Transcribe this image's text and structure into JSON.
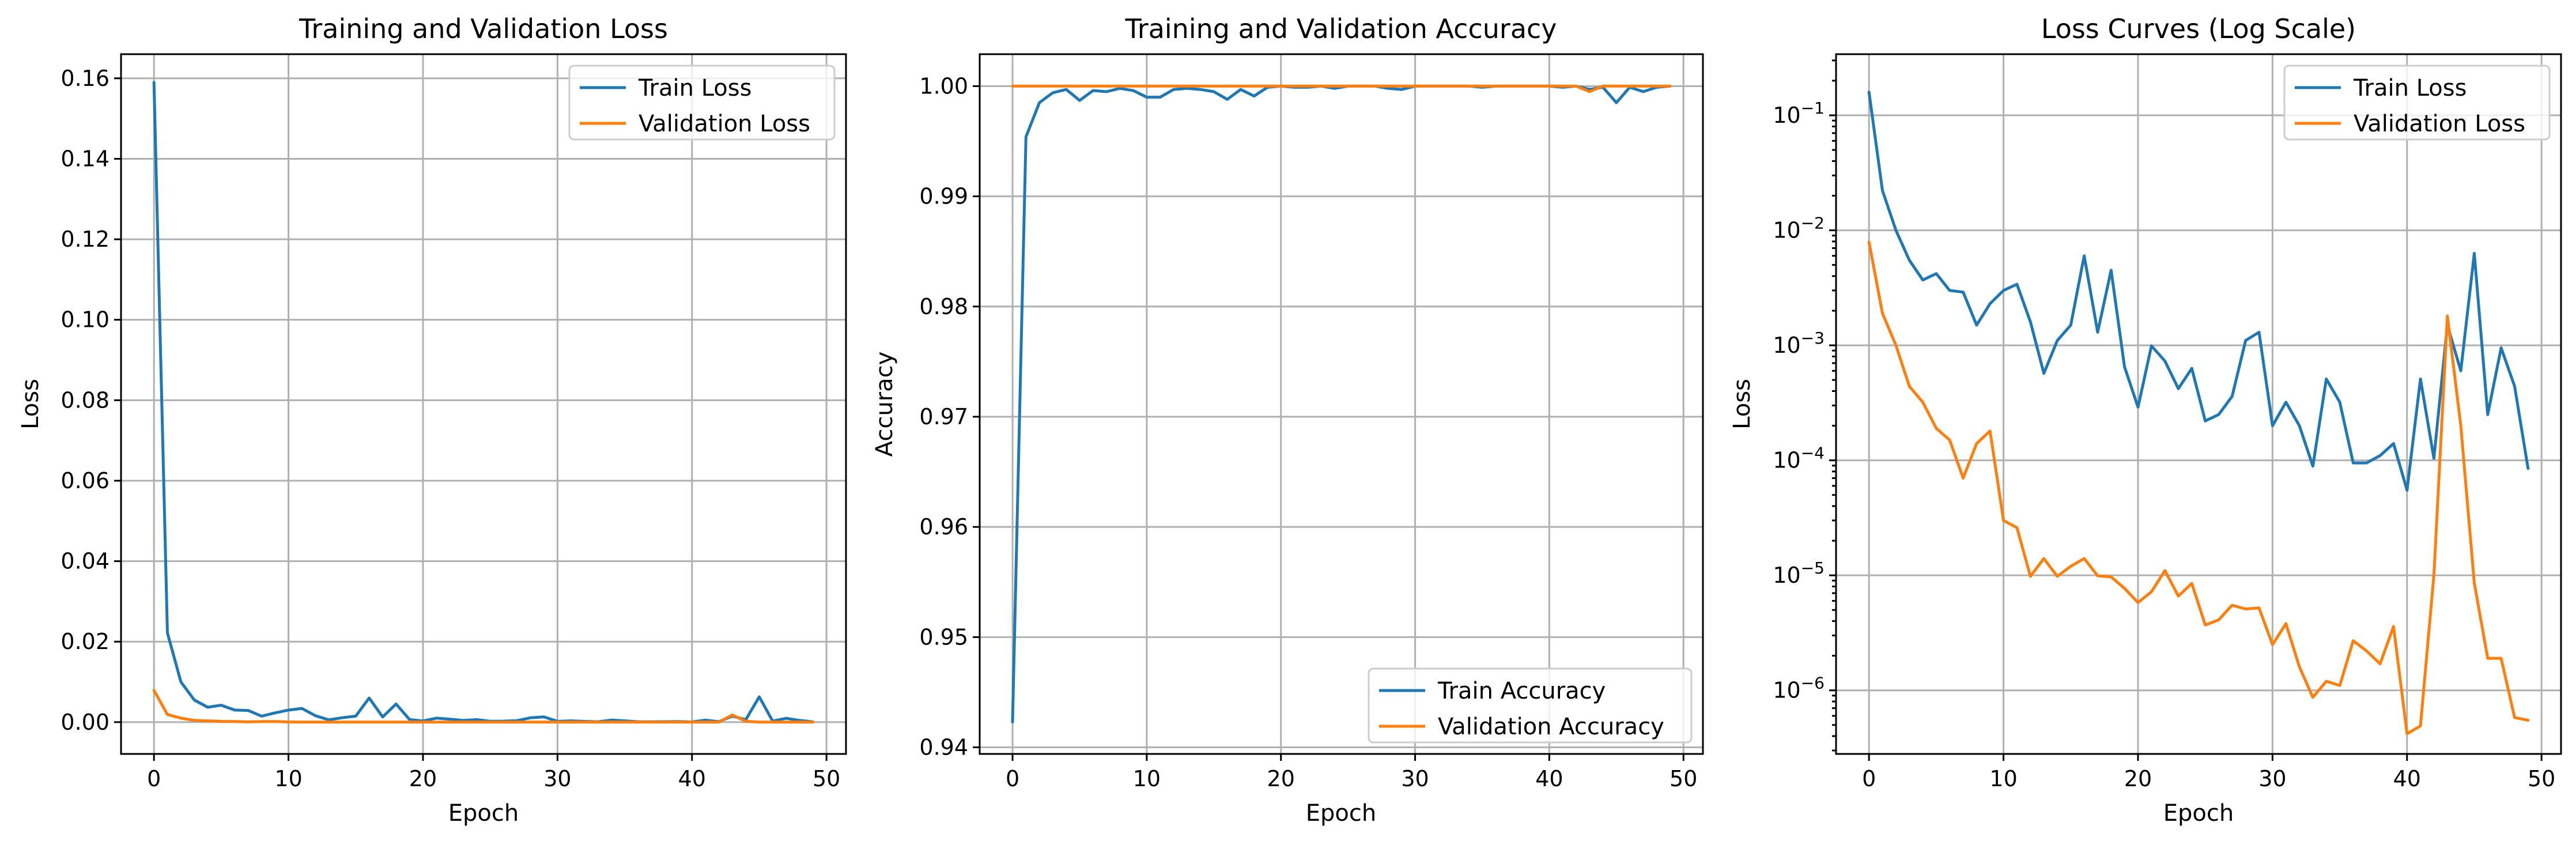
{
  "colors": {
    "train": "#1f77b4",
    "validation": "#ff7f0e",
    "grid": "#b0b0b0"
  },
  "chart_data": [
    {
      "type": "line",
      "title": "Training and Validation Loss",
      "xlabel": "Epoch",
      "ylabel": "Loss",
      "xlim": [
        -2.45,
        51.45
      ],
      "ylim": [
        -0.0079,
        0.166
      ],
      "yscale": "linear",
      "xticks": [
        0,
        10,
        20,
        30,
        40,
        50
      ],
      "xtick_labels": [
        "0",
        "10",
        "20",
        "30",
        "40",
        "50"
      ],
      "yticks": [
        0.0,
        0.02,
        0.04,
        0.06,
        0.08,
        0.1,
        0.12,
        0.14,
        0.16
      ],
      "ytick_labels": [
        "0.00",
        "0.02",
        "0.04",
        "0.06",
        "0.08",
        "0.10",
        "0.12",
        "0.14",
        "0.16"
      ],
      "grid": true,
      "legend_position": "upper right",
      "x": [
        0,
        1,
        2,
        3,
        4,
        5,
        6,
        7,
        8,
        9,
        10,
        11,
        12,
        13,
        14,
        15,
        16,
        17,
        18,
        19,
        20,
        21,
        22,
        23,
        24,
        25,
        26,
        27,
        28,
        29,
        30,
        31,
        32,
        33,
        34,
        35,
        36,
        37,
        38,
        39,
        40,
        41,
        42,
        43,
        44,
        45,
        46,
        47,
        48,
        49
      ],
      "series": [
        {
          "name": "Train Loss",
          "color": "#1f77b4",
          "values": [
            0.159,
            0.0222,
            0.01,
            0.0055,
            0.0037,
            0.0042,
            0.003,
            0.0029,
            0.0015,
            0.0023,
            0.003,
            0.0034,
            0.0016,
            0.00057,
            0.0011,
            0.0015,
            0.006,
            0.0013,
            0.0045,
            0.00065,
            0.00029,
            0.00099,
            0.00073,
            0.00042,
            0.00063,
            0.00022,
            0.00025,
            0.00036,
            0.0011,
            0.0013,
            0.0002,
            0.00032,
            0.0002,
            8.9e-05,
            0.00051,
            0.00032,
            9.5e-05,
            9.5e-05,
            0.00011,
            0.00014,
            5.5e-05,
            0.00051,
            0.000104,
            0.0015,
            0.0006,
            0.0063,
            0.00025,
            0.00095,
            0.00044,
            8.5e-05
          ]
        },
        {
          "name": "Validation Loss",
          "color": "#ff7f0e",
          "values": [
            0.0079,
            0.0019,
            0.001,
            0.00044,
            0.00032,
            0.00019,
            0.00015,
            7e-05,
            0.00014,
            0.00018,
            3e-05,
            2.6e-05,
            9.8e-06,
            1.4e-05,
            9.8e-06,
            1.2e-05,
            1.4e-05,
            9.9e-06,
            9.7e-06,
            7.7e-06,
            5.8e-06,
            7.2e-06,
            1.1e-05,
            6.6e-06,
            8.5e-06,
            3.7e-06,
            4.1e-06,
            5.5e-06,
            5.1e-06,
            5.2e-06,
            2.5e-06,
            3.8e-06,
            1.6e-06,
            8.7e-07,
            1.2e-06,
            1.1e-06,
            2.7e-06,
            2.2e-06,
            1.7e-06,
            3.6e-06,
            4.2e-07,
            4.9e-07,
            1e-05,
            0.0018,
            0.0002,
            8.6e-06,
            1.9e-06,
            1.9e-06,
            5.8e-07,
            5.5e-07
          ]
        }
      ]
    },
    {
      "type": "line",
      "title": "Training and Validation Accuracy",
      "xlabel": "Epoch",
      "ylabel": "Accuracy",
      "xlim": [
        -2.45,
        51.45
      ],
      "ylim": [
        0.9394,
        1.0029
      ],
      "yscale": "linear",
      "xticks": [
        0,
        10,
        20,
        30,
        40,
        50
      ],
      "xtick_labels": [
        "0",
        "10",
        "20",
        "30",
        "40",
        "50"
      ],
      "yticks": [
        0.94,
        0.95,
        0.96,
        0.97,
        0.98,
        0.99,
        1.0
      ],
      "ytick_labels": [
        "0.94",
        "0.95",
        "0.96",
        "0.97",
        "0.98",
        "0.99",
        "1.00"
      ],
      "grid": true,
      "legend_position": "lower right",
      "x": [
        0,
        1,
        2,
        3,
        4,
        5,
        6,
        7,
        8,
        9,
        10,
        11,
        12,
        13,
        14,
        15,
        16,
        17,
        18,
        19,
        20,
        21,
        22,
        23,
        24,
        25,
        26,
        27,
        28,
        29,
        30,
        31,
        32,
        33,
        34,
        35,
        36,
        37,
        38,
        39,
        40,
        41,
        42,
        43,
        44,
        45,
        46,
        47,
        48,
        49
      ],
      "series": [
        {
          "name": "Train Accuracy",
          "color": "#1f77b4",
          "values": [
            0.9423,
            0.9954,
            0.9985,
            0.9994,
            0.9997,
            0.9987,
            0.9996,
            0.9995,
            0.9998,
            0.9996,
            0.999,
            0.999,
            0.9997,
            0.9998,
            0.9997,
            0.9995,
            0.9988,
            0.9997,
            0.9991,
            0.9999,
            1.0,
            0.9999,
            0.9999,
            1.0,
            0.9998,
            1.0,
            1.0,
            1.0,
            0.9998,
            0.9997,
            1.0,
            1.0,
            1.0,
            1.0,
            1.0,
            0.9999,
            1.0,
            1.0,
            1.0,
            1.0,
            1.0,
            0.9999,
            1.0,
            0.9997,
            0.9999,
            0.9985,
            0.9999,
            0.9995,
            0.9999,
            1.0
          ]
        },
        {
          "name": "Validation Accuracy",
          "color": "#ff7f0e",
          "values": [
            1.0,
            1.0,
            1.0,
            1.0,
            1.0,
            1.0,
            1.0,
            1.0,
            1.0,
            1.0,
            1.0,
            1.0,
            1.0,
            1.0,
            1.0,
            1.0,
            1.0,
            1.0,
            1.0,
            1.0,
            1.0,
            1.0,
            1.0,
            1.0,
            1.0,
            1.0,
            1.0,
            1.0,
            1.0,
            1.0,
            1.0,
            1.0,
            1.0,
            1.0,
            1.0,
            1.0,
            1.0,
            1.0,
            1.0,
            1.0,
            1.0,
            1.0,
            1.0,
            0.9995,
            1.0,
            1.0,
            1.0,
            1.0,
            1.0,
            1.0
          ]
        }
      ]
    },
    {
      "type": "line",
      "title": "Loss Curves (Log Scale)",
      "xlabel": "Epoch",
      "ylabel": "Loss",
      "xlim": [
        -2.45,
        51.45
      ],
      "ylim": [
        2.8e-07,
        0.34
      ],
      "yscale": "log",
      "xticks": [
        0,
        10,
        20,
        30,
        40,
        50
      ],
      "xtick_labels": [
        "0",
        "10",
        "20",
        "30",
        "40",
        "50"
      ],
      "yticks": [
        1e-06,
        1e-05,
        0.0001,
        0.001,
        0.01,
        0.1
      ],
      "ytick_labels": [
        {
          "base": "10",
          "exp": "−6"
        },
        {
          "base": "10",
          "exp": "−5"
        },
        {
          "base": "10",
          "exp": "−4"
        },
        {
          "base": "10",
          "exp": "−3"
        },
        {
          "base": "10",
          "exp": "−2"
        },
        {
          "base": "10",
          "exp": "−1"
        }
      ],
      "grid": true,
      "legend_position": "upper right",
      "x": [
        0,
        1,
        2,
        3,
        4,
        5,
        6,
        7,
        8,
        9,
        10,
        11,
        12,
        13,
        14,
        15,
        16,
        17,
        18,
        19,
        20,
        21,
        22,
        23,
        24,
        25,
        26,
        27,
        28,
        29,
        30,
        31,
        32,
        33,
        34,
        35,
        36,
        37,
        38,
        39,
        40,
        41,
        42,
        43,
        44,
        45,
        46,
        47,
        48,
        49
      ],
      "series": [
        {
          "name": "Train Loss",
          "color": "#1f77b4",
          "values": [
            0.159,
            0.0222,
            0.01,
            0.0055,
            0.0037,
            0.0042,
            0.003,
            0.0029,
            0.0015,
            0.0023,
            0.003,
            0.0034,
            0.0016,
            0.00057,
            0.0011,
            0.0015,
            0.006,
            0.0013,
            0.0045,
            0.00065,
            0.00029,
            0.00099,
            0.00073,
            0.00042,
            0.00063,
            0.00022,
            0.00025,
            0.00036,
            0.0011,
            0.0013,
            0.0002,
            0.00032,
            0.0002,
            8.9e-05,
            0.00051,
            0.00032,
            9.5e-05,
            9.5e-05,
            0.00011,
            0.00014,
            5.5e-05,
            0.00051,
            0.000104,
            0.0015,
            0.0006,
            0.0063,
            0.00025,
            0.00095,
            0.00044,
            8.5e-05
          ]
        },
        {
          "name": "Validation Loss",
          "color": "#ff7f0e",
          "values": [
            0.0079,
            0.0019,
            0.001,
            0.00044,
            0.00032,
            0.00019,
            0.00015,
            7e-05,
            0.00014,
            0.00018,
            3e-05,
            2.6e-05,
            9.8e-06,
            1.4e-05,
            9.8e-06,
            1.2e-05,
            1.4e-05,
            9.9e-06,
            9.7e-06,
            7.7e-06,
            5.8e-06,
            7.2e-06,
            1.1e-05,
            6.6e-06,
            8.5e-06,
            3.7e-06,
            4.1e-06,
            5.5e-06,
            5.1e-06,
            5.2e-06,
            2.5e-06,
            3.8e-06,
            1.6e-06,
            8.7e-07,
            1.2e-06,
            1.1e-06,
            2.7e-06,
            2.2e-06,
            1.7e-06,
            3.6e-06,
            4.2e-07,
            4.9e-07,
            1e-05,
            0.0018,
            0.0002,
            8.6e-06,
            1.9e-06,
            1.9e-06,
            5.8e-07,
            5.5e-07
          ]
        }
      ]
    }
  ]
}
